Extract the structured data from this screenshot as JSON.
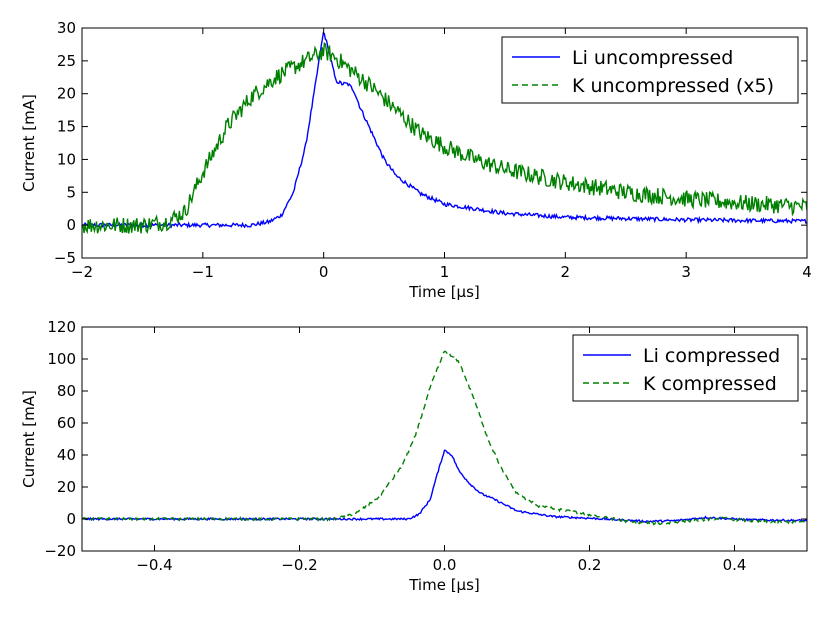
{
  "chart_data": [
    {
      "type": "line",
      "title": "",
      "xlabel": "Time [μs]",
      "ylabel": "Current [mA]",
      "xlim": [
        -2,
        4
      ],
      "ylim": [
        -5,
        30
      ],
      "xticks": [
        "−2",
        "−1",
        "0",
        "1",
        "2",
        "3",
        "4"
      ],
      "yticks": [
        "−5",
        "0",
        "5",
        "10",
        "15",
        "20",
        "25",
        "30"
      ],
      "xtick_values": [
        -2,
        -1,
        0,
        1,
        2,
        3,
        4
      ],
      "ytick_values": [
        -5,
        0,
        5,
        10,
        15,
        20,
        25,
        30
      ],
      "legend_position": "top-right",
      "series": [
        {
          "name": "Li uncompressed",
          "color": "#0000ff",
          "style": "solid",
          "noise": 0.3,
          "x": [
            -2,
            -0.6,
            -0.45,
            -0.35,
            -0.25,
            -0.15,
            -0.08,
            -0.03,
            0,
            0.05,
            0.1,
            0.15,
            0.2,
            0.25,
            0.3,
            0.4,
            0.5,
            0.6,
            0.8,
            1.0,
            1.5,
            2.0,
            2.5,
            3.0,
            3.5,
            4.0
          ],
          "values": [
            0,
            0,
            0.5,
            1.5,
            5,
            12,
            20,
            26,
            29.5,
            26,
            22,
            21.5,
            21.5,
            20.5,
            18,
            14,
            10,
            7.5,
            4.8,
            3.2,
            1.8,
            1.2,
            1,
            0.8,
            0.7,
            0.6
          ]
        },
        {
          "name": "K uncompressed (x5)",
          "color": "#008000",
          "style": "dashed",
          "noise": 1.3,
          "x": [
            -2,
            -1.5,
            -1.3,
            -1.15,
            -1.0,
            -0.8,
            -0.6,
            -0.4,
            -0.2,
            -0.1,
            0,
            0.1,
            0.2,
            0.4,
            0.6,
            0.8,
            1.0,
            1.25,
            1.5,
            2.0,
            2.5,
            3.0,
            3.5,
            4.0
          ],
          "values": [
            0,
            0,
            0.5,
            2,
            8,
            15,
            19.5,
            22.5,
            24.5,
            25.5,
            26.5,
            25.5,
            24,
            21,
            17.5,
            14,
            12,
            10,
            8.5,
            6.5,
            5,
            4,
            3.3,
            2.8
          ]
        }
      ]
    },
    {
      "type": "line",
      "title": "",
      "xlabel": "Time [μs]",
      "ylabel": "Current [mA]",
      "xlim": [
        -0.5,
        0.5
      ],
      "ylim": [
        -20,
        120
      ],
      "xticks": [
        "−0.4",
        "−0.2",
        "0.0",
        "0.2",
        "0.4"
      ],
      "yticks": [
        "−20",
        "0",
        "20",
        "40",
        "60",
        "80",
        "100",
        "120"
      ],
      "xtick_values": [
        -0.4,
        -0.2,
        0.0,
        0.2,
        0.4
      ],
      "ytick_values": [
        -20,
        0,
        20,
        40,
        60,
        80,
        100,
        120
      ],
      "legend_position": "top-right",
      "series": [
        {
          "name": "Li compressed",
          "color": "#0000ff",
          "style": "solid",
          "noise": 0.6,
          "x": [
            -0.5,
            -0.05,
            -0.035,
            -0.02,
            -0.01,
            0,
            0.01,
            0.02,
            0.035,
            0.05,
            0.07,
            0.1,
            0.15,
            0.2,
            0.28,
            0.32,
            0.36,
            0.42,
            0.5
          ],
          "values": [
            0,
            0,
            3,
            12,
            28,
            43,
            40,
            30,
            22,
            16,
            12,
            5,
            1.5,
            0.5,
            -1.5,
            -1,
            1,
            -0.5,
            -1
          ]
        },
        {
          "name": "K compressed",
          "color": "#008000",
          "style": "dashed",
          "noise": 0.8,
          "x": [
            -0.5,
            -0.15,
            -0.12,
            -0.09,
            -0.06,
            -0.04,
            -0.02,
            0,
            0.02,
            0.04,
            0.06,
            0.08,
            0.1,
            0.13,
            0.17,
            0.22,
            0.26,
            0.3,
            0.34,
            0.38,
            0.43,
            0.5
          ],
          "values": [
            0,
            0,
            4,
            14,
            32,
            52,
            82,
            105,
            98,
            76,
            50,
            30,
            16,
            8,
            5,
            1,
            -2,
            -3,
            -1,
            0.5,
            -1.5,
            -2
          ]
        }
      ]
    }
  ]
}
